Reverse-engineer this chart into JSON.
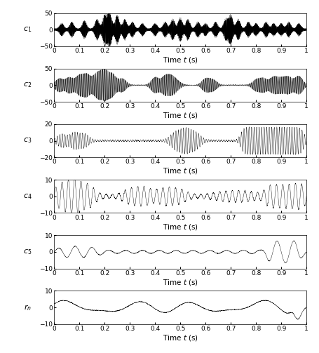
{
  "panels": [
    {
      "label": "c_1",
      "ylim": [
        -50,
        50
      ],
      "yticks": [
        -50,
        0,
        50
      ]
    },
    {
      "label": "c_2",
      "ylim": [
        -50,
        50
      ],
      "yticks": [
        -50,
        0,
        50
      ]
    },
    {
      "label": "c_3",
      "ylim": [
        -20,
        20
      ],
      "yticks": [
        -20,
        0,
        20
      ]
    },
    {
      "label": "c_4",
      "ylim": [
        -10,
        10
      ],
      "yticks": [
        -10,
        0,
        10
      ]
    },
    {
      "label": "c_5",
      "ylim": [
        -10,
        10
      ],
      "yticks": [
        -10,
        0,
        10
      ]
    },
    {
      "label": "r_n",
      "ylim": [
        -10,
        10
      ],
      "yticks": [
        -10,
        0,
        10
      ]
    }
  ],
  "xlim": [
    0,
    1
  ],
  "xticks": [
    0,
    0.1,
    0.2,
    0.3,
    0.4,
    0.5,
    0.6,
    0.7,
    0.8,
    0.9,
    1
  ],
  "xlabel": "Time $t$ (s)",
  "fs": 8192,
  "line_color": "black",
  "line_width": 0.3,
  "background_color": "white",
  "figsize": [
    4.55,
    5.03
  ],
  "dpi": 100
}
